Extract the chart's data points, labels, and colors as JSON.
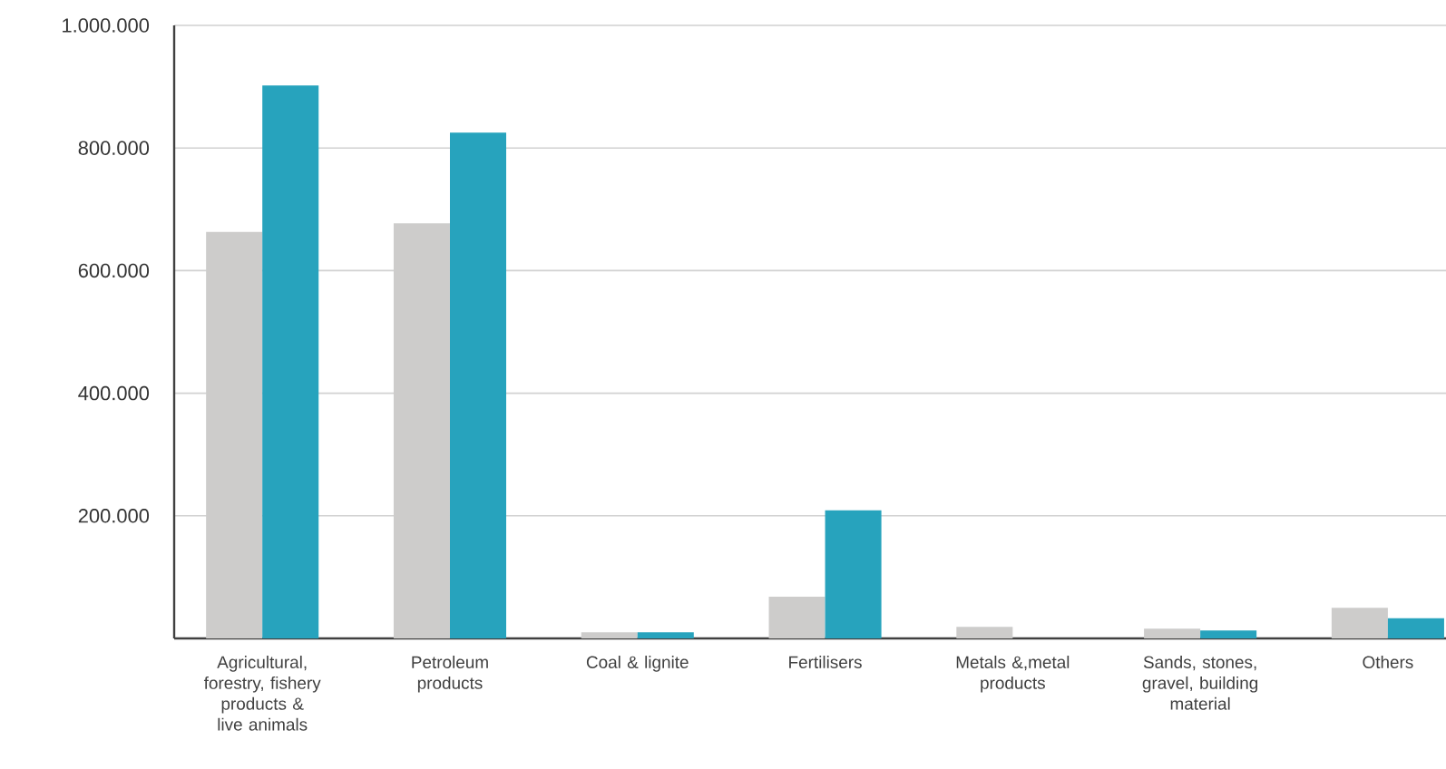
{
  "chart_data": {
    "type": "bar",
    "categories": [
      "Agricultural, forestry, fishery products & live animals",
      "Petroleum products",
      "Coal & lignite",
      "Fertilisers",
      "Metals &,metal products",
      "Sands, stones, gravel, building material",
      "Others"
    ],
    "series": [
      {
        "color": "#cdcccb",
        "values": [
          663000,
          677000,
          10000,
          68000,
          19000,
          16000,
          50000
        ]
      },
      {
        "color": "#27a3bd",
        "values": [
          902000,
          825000,
          10000,
          209000,
          null,
          13000,
          33000
        ]
      }
    ],
    "ylim": [
      0,
      1000000
    ],
    "yticks": [
      {
        "value": 200000,
        "label": "200.000"
      },
      {
        "value": 400000,
        "label": "400.000"
      },
      {
        "value": 600000,
        "label": "600.000"
      },
      {
        "value": 800000,
        "label": "800.000"
      },
      {
        "value": 1000000,
        "label": "1.000.000"
      }
    ],
    "grid": "y"
  }
}
